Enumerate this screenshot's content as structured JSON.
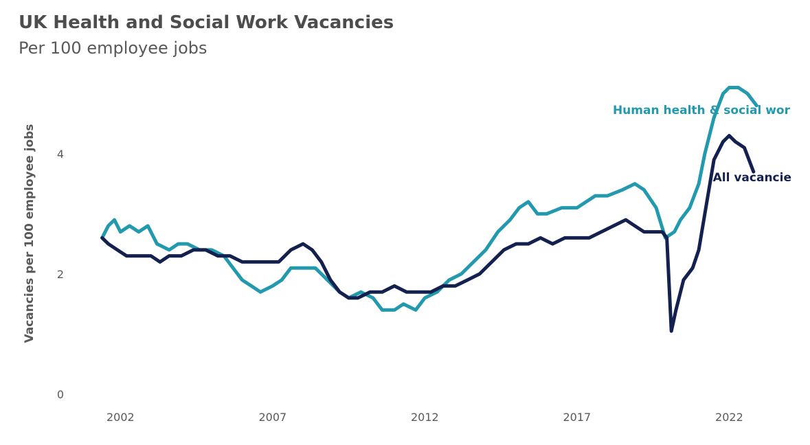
{
  "title": "UK Health and Social Work Vacancies",
  "subtitle": "Per 100 employee jobs",
  "colors": {
    "all": "#14214f",
    "health": "#2299ad"
  },
  "chart_data": {
    "type": "line",
    "title": "UK Health and Social Work Vacancies",
    "subtitle": "Per 100 employee jobs",
    "xlabel": "",
    "ylabel": "Vacancies per 100 employee jobs",
    "xlim": [
      2000.3,
      2024.0
    ],
    "ylim": [
      0,
      5.3
    ],
    "xticks": [
      2002,
      2007,
      2012,
      2017,
      2022
    ],
    "yticks": [
      0,
      2,
      4
    ],
    "grid": false,
    "legend": "direct labels at line ends",
    "series": [
      {
        "name": "Human health & social wor",
        "color": "#2299ad",
        "x": [
          2001.4,
          2001.6,
          2001.8,
          2002.0,
          2002.3,
          2002.6,
          2002.9,
          2003.2,
          2003.6,
          2003.9,
          2004.2,
          2004.6,
          2005.0,
          2005.4,
          2005.7,
          2006.0,
          2006.3,
          2006.6,
          2007.0,
          2007.3,
          2007.6,
          2008.0,
          2008.4,
          2008.8,
          2009.2,
          2009.5,
          2009.9,
          2010.3,
          2010.6,
          2011.0,
          2011.3,
          2011.7,
          2012.0,
          2012.4,
          2012.8,
          2013.2,
          2013.6,
          2014.0,
          2014.4,
          2014.8,
          2015.1,
          2015.4,
          2015.7,
          2016.0,
          2016.5,
          2017.0,
          2017.3,
          2017.6,
          2018.0,
          2018.5,
          2018.9,
          2019.2,
          2019.6,
          2019.9,
          2020.2,
          2020.4,
          2020.7,
          2021.0,
          2021.2,
          2021.5,
          2021.8,
          2022.0,
          2022.3,
          2022.6,
          2022.9
        ],
        "values": [
          2.6,
          2.8,
          2.9,
          2.7,
          2.8,
          2.7,
          2.8,
          2.5,
          2.4,
          2.5,
          2.5,
          2.4,
          2.4,
          2.3,
          2.1,
          1.9,
          1.8,
          1.7,
          1.8,
          1.9,
          2.1,
          2.1,
          2.1,
          1.9,
          1.7,
          1.6,
          1.7,
          1.6,
          1.4,
          1.4,
          1.5,
          1.4,
          1.6,
          1.7,
          1.9,
          2.0,
          2.2,
          2.4,
          2.7,
          2.9,
          3.1,
          3.2,
          3.0,
          3.0,
          3.1,
          3.1,
          3.2,
          3.3,
          3.3,
          3.4,
          3.5,
          3.4,
          3.1,
          2.6,
          2.7,
          2.9,
          3.1,
          3.5,
          4.0,
          4.6,
          5.0,
          5.1,
          5.1,
          5.0,
          4.8
        ]
      },
      {
        "name": "All vacancie",
        "color": "#14214f",
        "x": [
          2001.4,
          2001.6,
          2001.9,
          2002.2,
          2002.6,
          2003.0,
          2003.3,
          2003.6,
          2004.0,
          2004.4,
          2004.8,
          2005.2,
          2005.6,
          2006.0,
          2006.4,
          2006.8,
          2007.2,
          2007.6,
          2008.0,
          2008.3,
          2008.6,
          2008.9,
          2009.2,
          2009.5,
          2009.8,
          2010.2,
          2010.6,
          2011.0,
          2011.4,
          2011.8,
          2012.2,
          2012.6,
          2013.0,
          2013.4,
          2013.8,
          2014.2,
          2014.6,
          2015.0,
          2015.4,
          2015.8,
          2016.2,
          2016.6,
          2017.0,
          2017.4,
          2017.8,
          2018.2,
          2018.6,
          2018.9,
          2019.2,
          2019.5,
          2019.8,
          2019.95,
          2020.1,
          2020.25,
          2020.5,
          2020.8,
          2021.0,
          2021.2,
          2021.5,
          2021.8,
          2022.0,
          2022.2,
          2022.5,
          2022.8
        ],
        "values": [
          2.6,
          2.5,
          2.4,
          2.3,
          2.3,
          2.3,
          2.2,
          2.3,
          2.3,
          2.4,
          2.4,
          2.3,
          2.3,
          2.2,
          2.2,
          2.2,
          2.2,
          2.4,
          2.5,
          2.4,
          2.2,
          1.9,
          1.7,
          1.6,
          1.6,
          1.7,
          1.7,
          1.8,
          1.7,
          1.7,
          1.7,
          1.8,
          1.8,
          1.9,
          2.0,
          2.2,
          2.4,
          2.5,
          2.5,
          2.6,
          2.5,
          2.6,
          2.6,
          2.6,
          2.7,
          2.8,
          2.9,
          2.8,
          2.7,
          2.7,
          2.7,
          2.6,
          1.05,
          1.4,
          1.9,
          2.1,
          2.4,
          3.0,
          3.9,
          4.2,
          4.3,
          4.2,
          4.1,
          3.7
        ]
      }
    ],
    "annotations": [
      "Human health & social wor",
      "All vacancie"
    ]
  }
}
